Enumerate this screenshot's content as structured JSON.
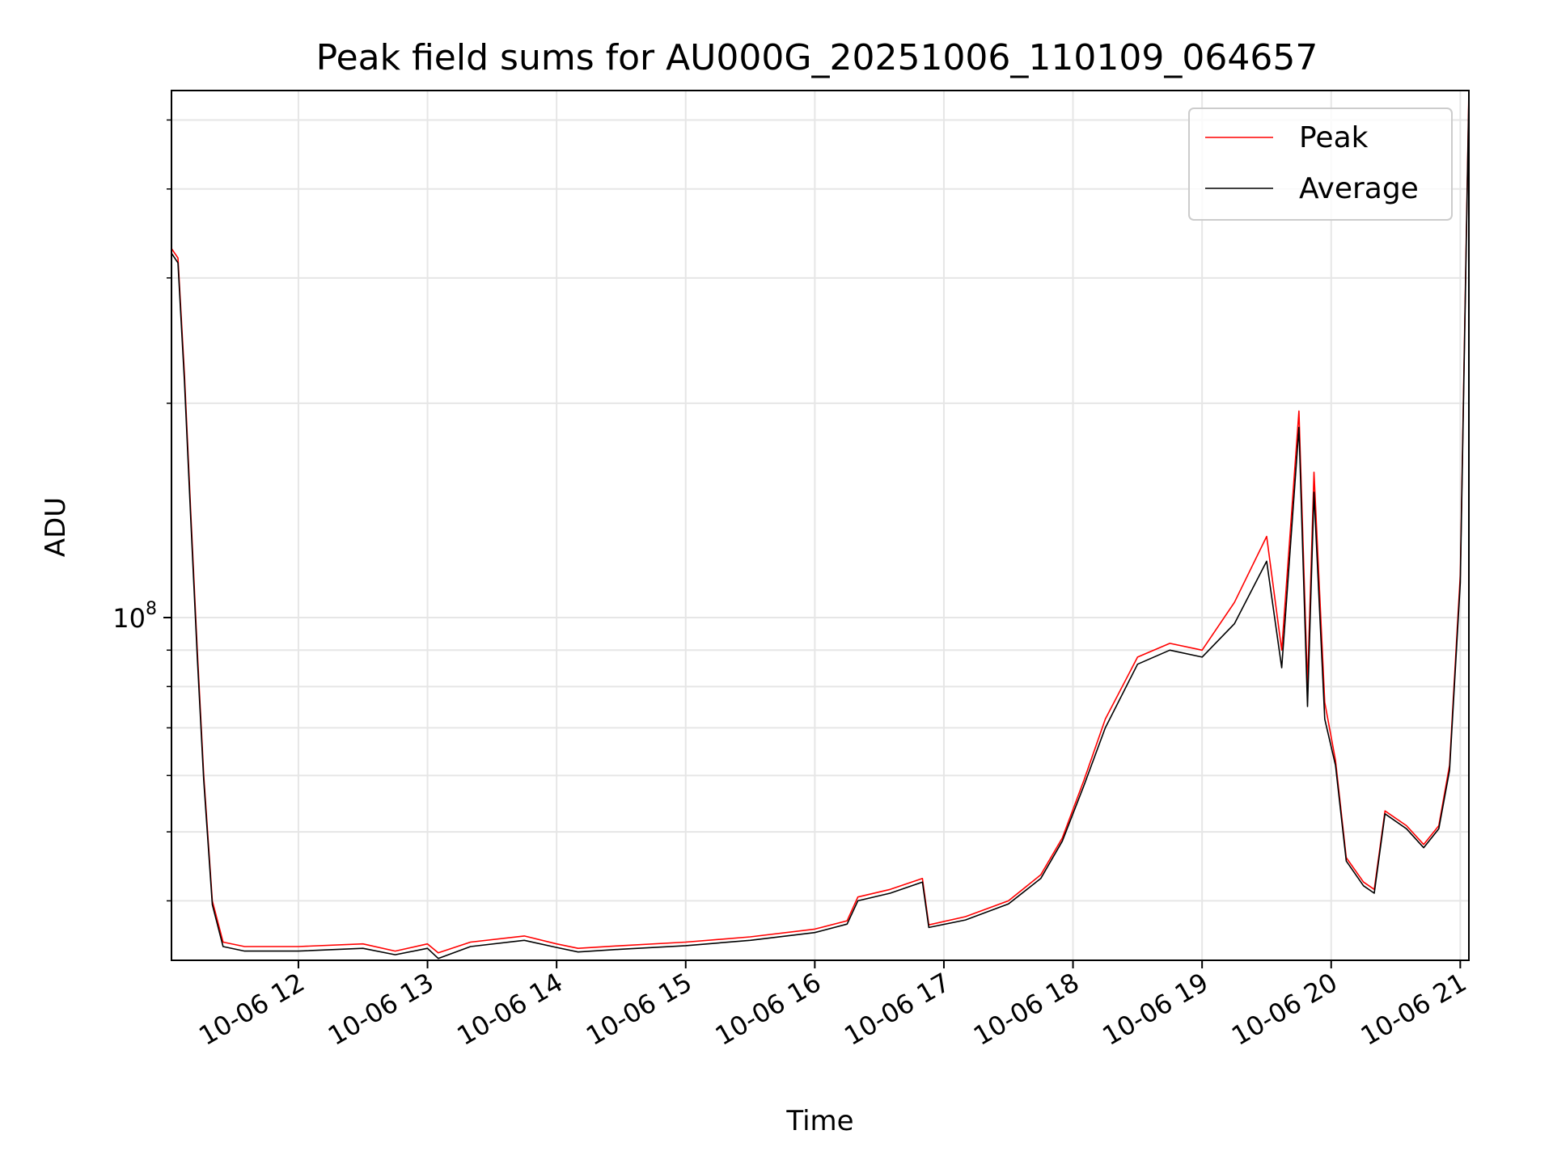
{
  "chart_data": {
    "type": "line",
    "title": "Peak field sums for AU000G_20251006_110109_064657",
    "xlabel": "Time",
    "ylabel": "ADU",
    "yscale": "log",
    "grid": true,
    "legend_position": "top-right",
    "xlim": [
      "2025-10-06 11:01",
      "2025-10-06 21:04"
    ],
    "ylim": [
      33000000,
      550000000
    ],
    "x_ticks": [
      {
        "value": "2025-10-06 12:00",
        "label": "10-06 12"
      },
      {
        "value": "2025-10-06 13:00",
        "label": "10-06 13"
      },
      {
        "value": "2025-10-06 14:00",
        "label": "10-06 14"
      },
      {
        "value": "2025-10-06 15:00",
        "label": "10-06 15"
      },
      {
        "value": "2025-10-06 16:00",
        "label": "10-06 16"
      },
      {
        "value": "2025-10-06 17:00",
        "label": "10-06 17"
      },
      {
        "value": "2025-10-06 18:00",
        "label": "10-06 18"
      },
      {
        "value": "2025-10-06 19:00",
        "label": "10-06 19"
      },
      {
        "value": "2025-10-06 20:00",
        "label": "10-06 20"
      },
      {
        "value": "2025-10-06 21:00",
        "label": "10-06 21"
      }
    ],
    "y_major_ticks": [
      {
        "value": 100000000,
        "base": "10",
        "exp": "8"
      }
    ],
    "y_minor_ticks": [
      40000000,
      50000000,
      60000000,
      70000000,
      80000000,
      90000000,
      200000000,
      300000000,
      400000000,
      500000000
    ],
    "series": [
      {
        "name": "Peak",
        "color": "#ff0000",
        "points": [
          [
            "2025-10-06 11:01",
            330000000
          ],
          [
            "2025-10-06 11:04",
            320000000
          ],
          [
            "2025-10-06 11:07",
            220000000
          ],
          [
            "2025-10-06 11:10",
            140000000
          ],
          [
            "2025-10-06 11:13",
            90000000
          ],
          [
            "2025-10-06 11:16",
            60000000
          ],
          [
            "2025-10-06 11:20",
            40000000
          ],
          [
            "2025-10-06 11:25",
            35000000
          ],
          [
            "2025-10-06 11:35",
            34500000
          ],
          [
            "2025-10-06 12:00",
            34500000
          ],
          [
            "2025-10-06 12:30",
            34800000
          ],
          [
            "2025-10-06 12:45",
            34000000
          ],
          [
            "2025-10-06 13:00",
            34800000
          ],
          [
            "2025-10-06 13:05",
            33800000
          ],
          [
            "2025-10-06 13:20",
            35000000
          ],
          [
            "2025-10-06 13:45",
            35700000
          ],
          [
            "2025-10-06 14:00",
            34800000
          ],
          [
            "2025-10-06 14:10",
            34300000
          ],
          [
            "2025-10-06 14:30",
            34600000
          ],
          [
            "2025-10-06 15:00",
            35000000
          ],
          [
            "2025-10-06 15:30",
            35600000
          ],
          [
            "2025-10-06 16:00",
            36500000
          ],
          [
            "2025-10-06 16:15",
            37500000
          ],
          [
            "2025-10-06 16:20",
            40500000
          ],
          [
            "2025-10-06 16:35",
            41500000
          ],
          [
            "2025-10-06 16:50",
            43000000
          ],
          [
            "2025-10-06 16:53",
            37000000
          ],
          [
            "2025-10-06 17:10",
            38000000
          ],
          [
            "2025-10-06 17:30",
            40000000
          ],
          [
            "2025-10-06 17:45",
            43500000
          ],
          [
            "2025-10-06 17:55",
            49000000
          ],
          [
            "2025-10-06 18:05",
            59000000
          ],
          [
            "2025-10-06 18:15",
            72000000
          ],
          [
            "2025-10-06 18:30",
            88000000
          ],
          [
            "2025-10-06 18:45",
            92000000
          ],
          [
            "2025-10-06 19:00",
            90000000
          ],
          [
            "2025-10-06 19:15",
            105000000
          ],
          [
            "2025-10-06 19:30",
            130000000
          ],
          [
            "2025-10-06 19:37",
            90000000
          ],
          [
            "2025-10-06 19:45",
            195000000
          ],
          [
            "2025-10-06 19:49",
            80000000
          ],
          [
            "2025-10-06 19:52",
            160000000
          ],
          [
            "2025-10-06 19:57",
            76000000
          ],
          [
            "2025-10-06 20:02",
            63000000
          ],
          [
            "2025-10-06 20:07",
            46000000
          ],
          [
            "2025-10-06 20:15",
            42500000
          ],
          [
            "2025-10-06 20:20",
            41500000
          ],
          [
            "2025-10-06 20:25",
            53500000
          ],
          [
            "2025-10-06 20:35",
            51000000
          ],
          [
            "2025-10-06 20:43",
            48000000
          ],
          [
            "2025-10-06 20:50",
            51000000
          ],
          [
            "2025-10-06 20:55",
            62000000
          ],
          [
            "2025-10-06 21:00",
            115000000
          ],
          [
            "2025-10-06 21:04",
            550000000
          ]
        ]
      },
      {
        "name": "Average",
        "color": "#000000",
        "points": [
          [
            "2025-10-06 11:01",
            325000000
          ],
          [
            "2025-10-06 11:04",
            315000000
          ],
          [
            "2025-10-06 11:07",
            215000000
          ],
          [
            "2025-10-06 11:10",
            137000000
          ],
          [
            "2025-10-06 11:13",
            88000000
          ],
          [
            "2025-10-06 11:16",
            59000000
          ],
          [
            "2025-10-06 11:20",
            39500000
          ],
          [
            "2025-10-06 11:25",
            34500000
          ],
          [
            "2025-10-06 11:35",
            34000000
          ],
          [
            "2025-10-06 12:00",
            34000000
          ],
          [
            "2025-10-06 12:30",
            34300000
          ],
          [
            "2025-10-06 12:45",
            33600000
          ],
          [
            "2025-10-06 13:00",
            34300000
          ],
          [
            "2025-10-06 13:05",
            33200000
          ],
          [
            "2025-10-06 13:20",
            34500000
          ],
          [
            "2025-10-06 13:45",
            35200000
          ],
          [
            "2025-10-06 14:00",
            34400000
          ],
          [
            "2025-10-06 14:10",
            33900000
          ],
          [
            "2025-10-06 14:30",
            34200000
          ],
          [
            "2025-10-06 15:00",
            34600000
          ],
          [
            "2025-10-06 15:30",
            35200000
          ],
          [
            "2025-10-06 16:00",
            36100000
          ],
          [
            "2025-10-06 16:15",
            37100000
          ],
          [
            "2025-10-06 16:20",
            40000000
          ],
          [
            "2025-10-06 16:35",
            41000000
          ],
          [
            "2025-10-06 16:50",
            42500000
          ],
          [
            "2025-10-06 16:53",
            36700000
          ],
          [
            "2025-10-06 17:10",
            37600000
          ],
          [
            "2025-10-06 17:30",
            39600000
          ],
          [
            "2025-10-06 17:45",
            43000000
          ],
          [
            "2025-10-06 17:55",
            48500000
          ],
          [
            "2025-10-06 18:05",
            58000000
          ],
          [
            "2025-10-06 18:15",
            70000000
          ],
          [
            "2025-10-06 18:30",
            86000000
          ],
          [
            "2025-10-06 18:45",
            90000000
          ],
          [
            "2025-10-06 19:00",
            88000000
          ],
          [
            "2025-10-06 19:15",
            98000000
          ],
          [
            "2025-10-06 19:30",
            120000000
          ],
          [
            "2025-10-06 19:37",
            85000000
          ],
          [
            "2025-10-06 19:45",
            185000000
          ],
          [
            "2025-10-06 19:49",
            75000000
          ],
          [
            "2025-10-06 19:52",
            150000000
          ],
          [
            "2025-10-06 19:57",
            72000000
          ],
          [
            "2025-10-06 20:02",
            62000000
          ],
          [
            "2025-10-06 20:07",
            45500000
          ],
          [
            "2025-10-06 20:15",
            42000000
          ],
          [
            "2025-10-06 20:20",
            41000000
          ],
          [
            "2025-10-06 20:25",
            53000000
          ],
          [
            "2025-10-06 20:35",
            50500000
          ],
          [
            "2025-10-06 20:43",
            47500000
          ],
          [
            "2025-10-06 20:50",
            50500000
          ],
          [
            "2025-10-06 20:55",
            61000000
          ],
          [
            "2025-10-06 21:00",
            112000000
          ],
          [
            "2025-10-06 21:04",
            540000000
          ]
        ]
      }
    ]
  }
}
